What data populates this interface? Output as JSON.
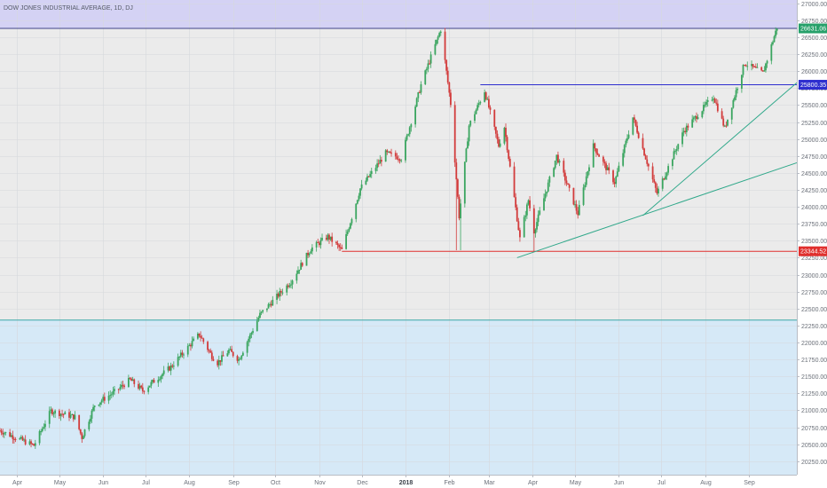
{
  "chart_data": {
    "type": "candlestick",
    "title": "DOW JONES INDUSTRIAL AVERAGE, 1D, DJ",
    "y_ticks": [
      "27000.00",
      "26750.00",
      "26500.00",
      "26250.00",
      "26000.00",
      "25750.00",
      "25500.00",
      "25250.00",
      "25000.00",
      "24750.00",
      "24500.00",
      "24250.00",
      "24000.00",
      "23750.00",
      "23500.00",
      "23250.00",
      "23000.00",
      "22750.00",
      "22500.00",
      "22250.00",
      "22000.00",
      "21750.00",
      "21500.00",
      "21250.00",
      "21000.00",
      "20750.00",
      "20500.00",
      "20250.00"
    ],
    "ylim": [
      20050,
      27050
    ],
    "x_labels": [
      {
        "label": "Apr",
        "date": "2017-04-01"
      },
      {
        "label": "May",
        "date": "2017-05-01"
      },
      {
        "label": "Jun",
        "date": "2017-06-01"
      },
      {
        "label": "Jul",
        "date": "2017-07-01"
      },
      {
        "label": "Aug",
        "date": "2017-08-01"
      },
      {
        "label": "Sep",
        "date": "2017-09-01"
      },
      {
        "label": "Oct",
        "date": "2017-10-01"
      },
      {
        "label": "Nov",
        "date": "2017-11-01"
      },
      {
        "label": "Dec",
        "date": "2017-12-01"
      },
      {
        "label": "2018",
        "date": "2018-01-01"
      },
      {
        "label": "Feb",
        "date": "2018-02-01"
      },
      {
        "label": "Mar",
        "date": "2018-03-01"
      },
      {
        "label": "Apr",
        "date": "2018-04-01"
      },
      {
        "label": "May",
        "date": "2018-05-01"
      },
      {
        "label": "Jun",
        "date": "2018-06-01"
      },
      {
        "label": "Jul",
        "date": "2018-07-01"
      },
      {
        "label": "Aug",
        "date": "2018-08-01"
      },
      {
        "label": "Sep",
        "date": "2018-09-01"
      }
    ],
    "xlim": [
      "2017-03-20",
      "2018-10-05"
    ],
    "shaded_zones": [
      {
        "from": 26631.06,
        "to": 27050,
        "color": "#d4d2f4"
      },
      {
        "from": 20050,
        "to": 22330,
        "color": "#d6e9f7"
      }
    ],
    "horizontal_lines": [
      {
        "value": 26631.06,
        "color": "#40458a"
      },
      {
        "value": 22330,
        "color": "#3aa8a8"
      },
      {
        "value": 25800.35,
        "color": "#2e2ecf",
        "from": "2018-02-23",
        "to": "2018-10-05"
      },
      {
        "value": 23344.52,
        "color": "#e0302e",
        "from": "2017-11-17",
        "to": "2018-10-05"
      }
    ],
    "trend_lines": [
      {
        "from": {
          "date": "2018-03-21",
          "value": 23250
        },
        "to": {
          "date": "2018-10-05",
          "value": 24650
        },
        "color": "#2fa88a"
      },
      {
        "from": {
          "date": "2018-06-18",
          "value": 23870
        },
        "to": {
          "date": "2018-10-05",
          "value": 25830
        },
        "color": "#2fa88a"
      }
    ],
    "price_tags": [
      {
        "label": "26631.06",
        "value": 26631.06,
        "color": "#26a06a"
      },
      {
        "label": "25800.35",
        "value": 25800.35,
        "color": "#2e2ecf"
      },
      {
        "label": "23344.52",
        "value": 23344.52,
        "color": "#e0302e"
      }
    ],
    "anchors": [
      {
        "date": "2017-03-20",
        "value": 20700
      },
      {
        "date": "2017-04-13",
        "value": 20480
      },
      {
        "date": "2017-04-25",
        "value": 20990
      },
      {
        "date": "2017-05-12",
        "value": 20900
      },
      {
        "date": "2017-05-17",
        "value": 20600
      },
      {
        "date": "2017-05-26",
        "value": 21080
      },
      {
        "date": "2017-06-09",
        "value": 21270
      },
      {
        "date": "2017-06-20",
        "value": 21450
      },
      {
        "date": "2017-06-29",
        "value": 21290
      },
      {
        "date": "2017-07-19",
        "value": 21640
      },
      {
        "date": "2017-08-08",
        "value": 22120
      },
      {
        "date": "2017-08-17",
        "value": 21800
      },
      {
        "date": "2017-08-21",
        "value": 21700
      },
      {
        "date": "2017-08-29",
        "value": 21880
      },
      {
        "date": "2017-09-05",
        "value": 21750
      },
      {
        "date": "2017-09-20",
        "value": 22410
      },
      {
        "date": "2017-10-12",
        "value": 22900
      },
      {
        "date": "2017-10-26",
        "value": 23380
      },
      {
        "date": "2017-11-07",
        "value": 23560
      },
      {
        "date": "2017-11-17",
        "value": 23360
      },
      {
        "date": "2017-11-30",
        "value": 24270
      },
      {
        "date": "2017-12-18",
        "value": 24790
      },
      {
        "date": "2017-12-29",
        "value": 24720
      },
      {
        "date": "2018-01-12",
        "value": 25800
      },
      {
        "date": "2018-01-26",
        "value": 26616
      },
      {
        "date": "2018-02-02",
        "value": 25520
      },
      {
        "date": "2018-02-08",
        "value": 23860
      },
      {
        "date": "2018-02-15",
        "value": 25200
      },
      {
        "date": "2018-02-26",
        "value": 25710
      },
      {
        "date": "2018-03-08",
        "value": 24900
      },
      {
        "date": "2018-03-12",
        "value": 25180
      },
      {
        "date": "2018-03-23",
        "value": 23530
      },
      {
        "date": "2018-03-29",
        "value": 24100
      },
      {
        "date": "2018-04-02",
        "value": 23640
      },
      {
        "date": "2018-04-18",
        "value": 24750
      },
      {
        "date": "2018-05-03",
        "value": 23900
      },
      {
        "date": "2018-05-14",
        "value": 24900
      },
      {
        "date": "2018-05-29",
        "value": 24360
      },
      {
        "date": "2018-06-11",
        "value": 25320
      },
      {
        "date": "2018-06-28",
        "value": 24200
      },
      {
        "date": "2018-07-17",
        "value": 25120
      },
      {
        "date": "2018-08-07",
        "value": 25630
      },
      {
        "date": "2018-08-15",
        "value": 25160
      },
      {
        "date": "2018-08-29",
        "value": 26120
      },
      {
        "date": "2018-09-11",
        "value": 25970
      },
      {
        "date": "2018-09-21",
        "value": 26650
      }
    ]
  }
}
